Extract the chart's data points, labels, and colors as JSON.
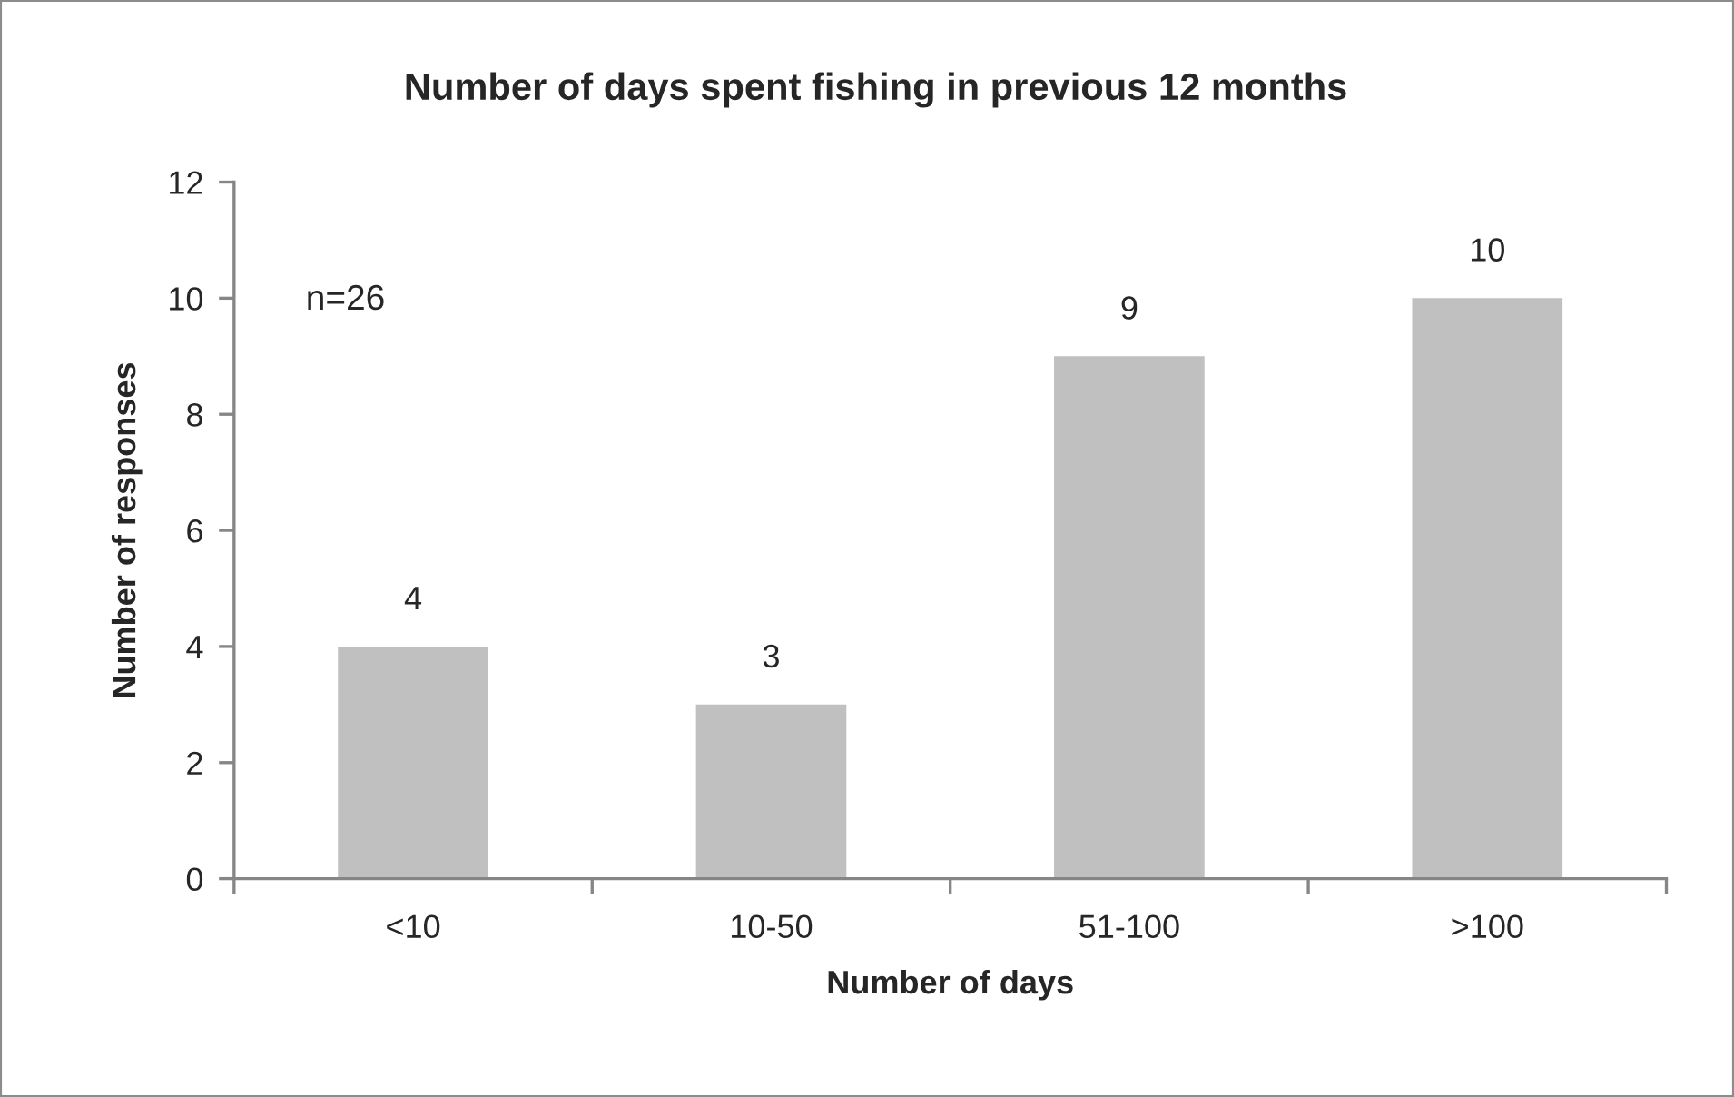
{
  "chart_data": {
    "type": "bar",
    "title": "Number of days spent fishing in previous 12 months",
    "xlabel": "Number of days",
    "ylabel": "Number of responses",
    "categories": [
      "<10",
      "10-50",
      "51-100",
      ">100"
    ],
    "values": [
      4,
      3,
      9,
      10
    ],
    "color": "#c0c0c0",
    "ylim": [
      0,
      12
    ],
    "yticks": [
      0,
      2,
      4,
      6,
      8,
      10,
      12
    ],
    "data_labels": true,
    "grid": false,
    "annotations": [
      "n=26"
    ]
  }
}
